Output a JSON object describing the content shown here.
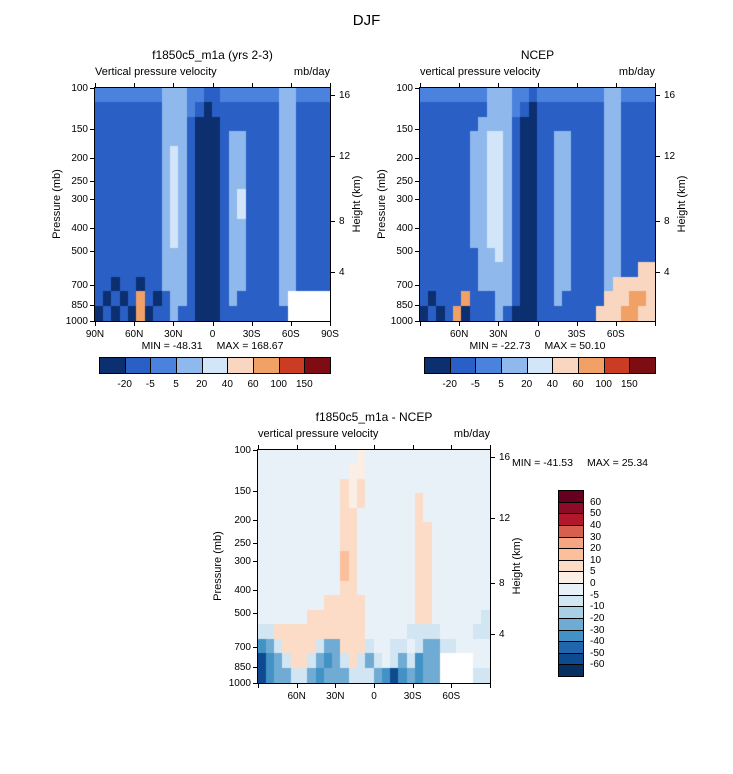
{
  "main_title": "DJF",
  "chart_data": [
    {
      "type": "heatmap",
      "id": "model",
      "title": "f1850c5_m1a (yrs 2-3)",
      "field_label": "Vertical pressure velocity",
      "units": "mb/day",
      "min_label": "MIN = -48.31",
      "max_label": "MAX = 168.67",
      "ylabel_left": "Pressure (mb)",
      "ylabel_right": "Height (km)",
      "y_scale": "log-pressure",
      "x_domain": [
        "90N",
        "90S"
      ],
      "y_ticks_pressure": [
        100,
        150,
        200,
        250,
        300,
        400,
        500,
        700,
        850,
        1000
      ],
      "y_ticks_height_km": [
        16,
        12,
        8,
        4
      ],
      "x_tick_labels": [
        "90N",
        "60N",
        "30N",
        "0",
        "30S",
        "60S",
        "90S"
      ],
      "colorbar_labels": [
        "-20",
        "-5",
        "5",
        "20",
        "40",
        "60",
        "100",
        "150"
      ],
      "palette": [
        "#0b2f6f",
        "#2a5fc6",
        "#4a82dd",
        "#8fb8ec",
        "#d3e5f8",
        "#f8d6c0",
        "#f1a066",
        "#cb3d22",
        "#7d0d12"
      ],
      "no_data_color": "#ffffff",
      "grid_cols": 28,
      "grid_rows": 16,
      "grid": [
        "2222222233322112222222332222",
        "1111111133321011111111331111",
        "1111111133310001111111331111",
        "1111111133310001331111331111",
        "1111111134310001331111331111",
        "1111111134310001331111331111",
        "1111111134310001331111331111",
        "1111111134310001341111331111",
        "1111111134310001341111331111",
        "1111111134310001331111331111",
        "1111111134310001331111331111",
        "1111111133310001331111331111",
        "1111111133310001331111331111",
        "1101101133310001331111331111",
        "10101610133100013111113xxxxx",
        "01010601131100011111111xxxxx"
      ]
    },
    {
      "type": "heatmap",
      "id": "ncep",
      "title": "NCEP",
      "field_label": "vertical pressure velocity",
      "units": "mb/day",
      "min_label": "MIN = -22.73",
      "max_label": "MAX = 50.10",
      "ylabel_left": "Pressure (mb)",
      "ylabel_right": "Height (km)",
      "y_scale": "log-pressure",
      "x_domain": [
        "90N",
        "90S"
      ],
      "y_ticks_pressure": [
        100,
        150,
        200,
        250,
        300,
        400,
        500,
        700,
        850,
        1000
      ],
      "y_ticks_height_km": [
        16,
        12,
        8,
        4
      ],
      "x_tick_labels": [
        "60N",
        "30N",
        "0",
        "30S",
        "60S"
      ],
      "colorbar_labels": [
        "-20",
        "-5",
        "5",
        "20",
        "40",
        "60",
        "100",
        "150"
      ],
      "palette": [
        "#0b2f6f",
        "#2a5fc6",
        "#4a82dd",
        "#8fb8ec",
        "#d3e5f8",
        "#f8d6c0",
        "#f1a066",
        "#cb3d22",
        "#7d0d12"
      ],
      "no_data_color": "#ffffff",
      "grid_cols": 28,
      "grid_rows": 16,
      "grid": [
        "2222222233322122222222332222",
        "1111111133321011111111331111",
        "1111111333310011111111331111",
        "1111113344310011331111331111",
        "1111113344310011331111331111",
        "1111113344310011331111331111",
        "1111113344310011331111331111",
        "1111113344310011331111331111",
        "1111113344310011331111331111",
        "1111113344310011331111331111",
        "1111113344310011331111331111",
        "1111111334310011331111331111",
        "1111111333310011331111331155",
        "1111111333310011331111355555",
        "1011161113310011311111555665",
        "0101601113100011111115556655"
      ]
    },
    {
      "type": "heatmap",
      "id": "difference",
      "title": "f1850c5_m1a - NCEP",
      "field_label": "vertical pressure velocity",
      "units": "mb/day",
      "min_label": "MIN = -41.53",
      "max_label": "MAX = 25.34",
      "ylabel_left": "Pressure (mb)",
      "ylabel_right": "Height (km)",
      "y_scale": "log-pressure",
      "x_domain": [
        "90N",
        "90S"
      ],
      "y_ticks_pressure": [
        100,
        150,
        200,
        250,
        300,
        400,
        500,
        700,
        850,
        1000
      ],
      "y_ticks_height_km": [
        16,
        12,
        8,
        4
      ],
      "x_tick_labels": [
        "60N",
        "30N",
        "0",
        "30S",
        "60S"
      ],
      "colorbar_labels": [
        "60",
        "50",
        "40",
        "30",
        "20",
        "10",
        "5",
        "0",
        "-5",
        "-10",
        "-20",
        "-30",
        "-40",
        "-50",
        "-60"
      ],
      "palette": [
        "#67001f",
        "#8c0b27",
        "#b2182b",
        "#d6604d",
        "#f4a582",
        "#fbc09b",
        "#fcdcc6",
        "#fbeee4",
        "#e9f1f8",
        "#d2e5f3",
        "#a9cfe5",
        "#6fabd3",
        "#4292c6",
        "#2166ac",
        "#0d4a90",
        "#053061"
      ],
      "no_data_color": "#ffffff",
      "grid_cols": 28,
      "grid_rows": 16,
      "grid": [
        "8888888888887888888888888888",
        "8888888888877888888888888888",
        "8888888888676888888888888888",
        "8888888888676888888688888888",
        "8888888888668888888688888888",
        "8888888888668888888668888888",
        "8888888888668888888668888888",
        "8888888888568888888668888888",
        "8888888888568888888668888888",
        "8888888888668888888668888888",
        "8888888866666888888668888888",
        "8888886666666888888668888889",
        "9966666666666888889999888899",
        "cb966669bb6669889989bb998888",
        "ecb9669bcb969b989b9cbbxxxx88",
        "ecbb99bcbbb999bcecbcbbxxxx99"
      ]
    }
  ]
}
